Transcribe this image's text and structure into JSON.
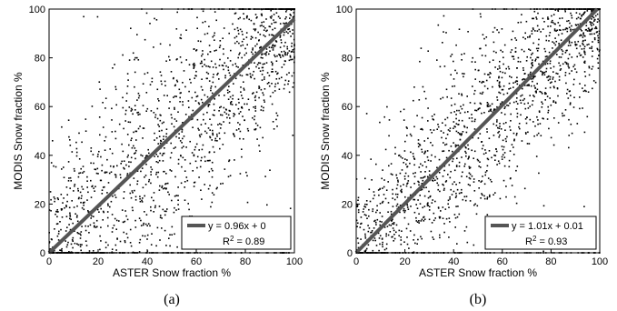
{
  "chart_data": [
    {
      "type": "scatter",
      "panel_label": "(a)",
      "xlabel": "ASTER Snow fraction %",
      "ylabel": "MODIS Snow fraction %",
      "xlim": [
        0,
        100
      ],
      "ylim": [
        0,
        100
      ],
      "xticks": [
        "0",
        "20",
        "40",
        "60",
        "80",
        "100"
      ],
      "yticks": [
        "0",
        "20",
        "40",
        "60",
        "80",
        "100"
      ],
      "grid": false,
      "legend_position": "bottom-right",
      "legend_line": "y = 0.96x + 0",
      "legend_r2_prefix": "R",
      "legend_r2_exp": "2",
      "legend_r2_suffix": " = 0.89",
      "fit": {
        "slope": 0.96,
        "intercept": 0
      },
      "point_color": "#000000",
      "fit_color": "#555555"
    },
    {
      "type": "scatter",
      "panel_label": "(b)",
      "xlabel": "ASTER Snow fraction %",
      "ylabel": "MODIS Snow fraction %",
      "xlim": [
        0,
        100
      ],
      "ylim": [
        0,
        100
      ],
      "xticks": [
        "0",
        "20",
        "40",
        "60",
        "80",
        "100"
      ],
      "yticks": [
        "0",
        "20",
        "40",
        "60",
        "80",
        "100"
      ],
      "grid": false,
      "legend_position": "bottom-right",
      "legend_line": "y = 1.01x + 0.01",
      "legend_r2_prefix": "R",
      "legend_r2_exp": "2",
      "legend_r2_suffix": " = 0.93",
      "fit": {
        "slope": 1.01,
        "intercept": 0.01
      },
      "point_color": "#000000",
      "fit_color": "#555555"
    }
  ]
}
